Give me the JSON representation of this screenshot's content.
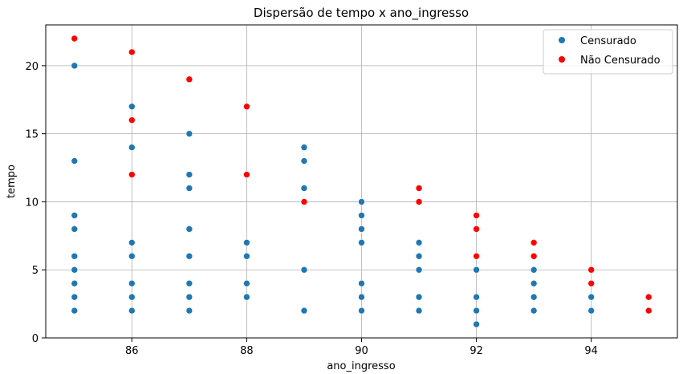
{
  "chart_data": {
    "type": "scatter",
    "title": "Dispersão de tempo x ano_ingresso",
    "xlabel": "ano_ingresso",
    "ylabel": "tempo",
    "xlim": [
      84.5,
      95.5
    ],
    "ylim": [
      0,
      23
    ],
    "xticks": [
      86,
      88,
      90,
      92,
      94
    ],
    "yticks": [
      0,
      5,
      10,
      15,
      20
    ],
    "grid": true,
    "legend_position": "top-right",
    "series": [
      {
        "name": "Censurado",
        "color": "#1f77b4",
        "points": [
          [
            85,
            20
          ],
          [
            85,
            13
          ],
          [
            85,
            9
          ],
          [
            85,
            8
          ],
          [
            85,
            6
          ],
          [
            85,
            5
          ],
          [
            85,
            4
          ],
          [
            85,
            3
          ],
          [
            85,
            2
          ],
          [
            86,
            17
          ],
          [
            86,
            14
          ],
          [
            86,
            7
          ],
          [
            86,
            6
          ],
          [
            86,
            4
          ],
          [
            86,
            3
          ],
          [
            86,
            2
          ],
          [
            87,
            15
          ],
          [
            87,
            12
          ],
          [
            87,
            11
          ],
          [
            87,
            8
          ],
          [
            87,
            6
          ],
          [
            87,
            4
          ],
          [
            87,
            3
          ],
          [
            87,
            2
          ],
          [
            88,
            7
          ],
          [
            88,
            6
          ],
          [
            88,
            4
          ],
          [
            88,
            3
          ],
          [
            89,
            14
          ],
          [
            89,
            13
          ],
          [
            89,
            11
          ],
          [
            89,
            5
          ],
          [
            89,
            2
          ],
          [
            90,
            10
          ],
          [
            90,
            9
          ],
          [
            90,
            8
          ],
          [
            90,
            7
          ],
          [
            90,
            4
          ],
          [
            90,
            3
          ],
          [
            90,
            2
          ],
          [
            91,
            7
          ],
          [
            91,
            6
          ],
          [
            91,
            5
          ],
          [
            91,
            3
          ],
          [
            91,
            2
          ],
          [
            92,
            5
          ],
          [
            92,
            3
          ],
          [
            92,
            2
          ],
          [
            92,
            1
          ],
          [
            93,
            5
          ],
          [
            93,
            4
          ],
          [
            93,
            3
          ],
          [
            93,
            2
          ],
          [
            94,
            3
          ],
          [
            94,
            2
          ]
        ]
      },
      {
        "name": "Não Censurado",
        "color": "#ff0000",
        "points": [
          [
            85,
            22
          ],
          [
            86,
            21
          ],
          [
            86,
            16
          ],
          [
            86,
            12
          ],
          [
            87,
            19
          ],
          [
            88,
            17
          ],
          [
            88,
            12
          ],
          [
            89,
            10
          ],
          [
            91,
            11
          ],
          [
            91,
            10
          ],
          [
            92,
            9
          ],
          [
            92,
            8
          ],
          [
            92,
            6
          ],
          [
            93,
            7
          ],
          [
            93,
            6
          ],
          [
            94,
            5
          ],
          [
            94,
            4
          ],
          [
            95,
            3
          ],
          [
            95,
            2
          ]
        ]
      }
    ]
  }
}
